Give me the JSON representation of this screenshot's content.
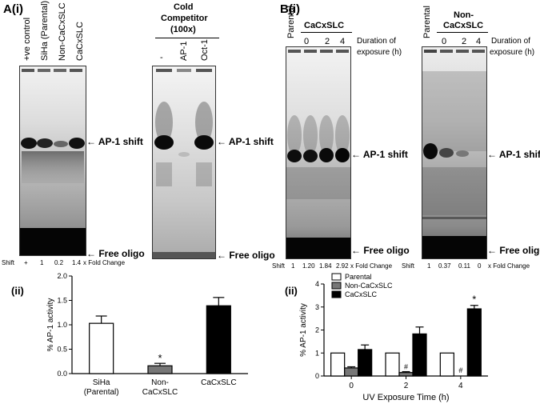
{
  "panelA": {
    "label": "A(i)",
    "gel1_lanes": [
      "+ve control",
      "SiHa (Parental)",
      "Non-CaCxSLC",
      "CaCxSLC"
    ],
    "competitor_title_1": "Cold",
    "competitor_title_2": "Competitor",
    "competitor_title_3": "(100x)",
    "gel2_lanes": [
      "-",
      "AP-1",
      "Oct-1"
    ],
    "ap1_shift": "AP-1 shift",
    "free_oligo": "Free oligo",
    "shift_label": "Shift",
    "shift_values": [
      "+",
      "1",
      "0.2",
      "1.4"
    ],
    "fold_change": "x Fold Change"
  },
  "panelB": {
    "label": "B(i)",
    "gel1_top": "Parental",
    "gel1_group": "CaCxSLC",
    "gel1_times": [
      "0",
      "2",
      "4"
    ],
    "gel2_top": "Parental",
    "gel2_group_1": "Non-",
    "gel2_group_2": "CaCxSLC",
    "gel2_times": [
      "0",
      "2",
      "4"
    ],
    "duration_1": "Duration of",
    "duration_2": "exposure (h)",
    "ap1_shift": "AP-1 shift",
    "free_oligo": "Free oligo",
    "shift_label": "Shift",
    "shift1_values": [
      "1",
      "1.20",
      "1.84",
      "2.92"
    ],
    "shift2_values": [
      "1",
      "0.37",
      "0.11",
      "0"
    ],
    "fold_change": "x Fold  Change"
  },
  "chart_data": [
    {
      "type": "bar",
      "panel": "(ii)",
      "categories": [
        "SiHa (Parental)",
        "Non-CaCxSLC",
        "CaCxSLC"
      ],
      "values": [
        1.03,
        0.16,
        1.39
      ],
      "errors": [
        0.15,
        0.05,
        0.17
      ],
      "colors": [
        "#ffffff",
        "#777777",
        "#000000"
      ],
      "annotations": [
        {
          "category": "Non-CaCxSLC",
          "text": "*"
        }
      ],
      "ylabel": "% AP-1 activity",
      "xlabel": "",
      "ylim": [
        0,
        2.0
      ],
      "yticks": [
        "0.0",
        "0.5",
        "1.0",
        "1.5",
        "2.0"
      ]
    },
    {
      "type": "bar",
      "panel": "(ii)",
      "categories": [
        "0",
        "2",
        "4"
      ],
      "series": [
        {
          "name": "Parental",
          "color": "#ffffff",
          "values": [
            1.0,
            1.0,
            1.0
          ],
          "errors": [
            0,
            0,
            0
          ]
        },
        {
          "name": "Non-CaCxSLC",
          "color": "#777777",
          "values": [
            0.35,
            0.15,
            0.0
          ],
          "errors": [
            0.05,
            0.04,
            0
          ]
        },
        {
          "name": "CaCxSLC",
          "color": "#000000",
          "values": [
            1.15,
            1.83,
            2.92
          ],
          "errors": [
            0.2,
            0.3,
            0.15
          ]
        }
      ],
      "annotations": [
        {
          "category": "2",
          "series": "Non-CaCxSLC",
          "text": "#"
        },
        {
          "category": "4",
          "series": "Non-CaCxSLC",
          "text": "#"
        },
        {
          "category": "4",
          "series": "CaCxSLC",
          "text": "*"
        }
      ],
      "ylabel": "% AP-1 activity",
      "xlabel": "UV Exposure Time (h)",
      "ylim": [
        0,
        4
      ],
      "yticks": [
        "0",
        "1",
        "2",
        "3",
        "4"
      ],
      "legend": "top-left"
    }
  ]
}
